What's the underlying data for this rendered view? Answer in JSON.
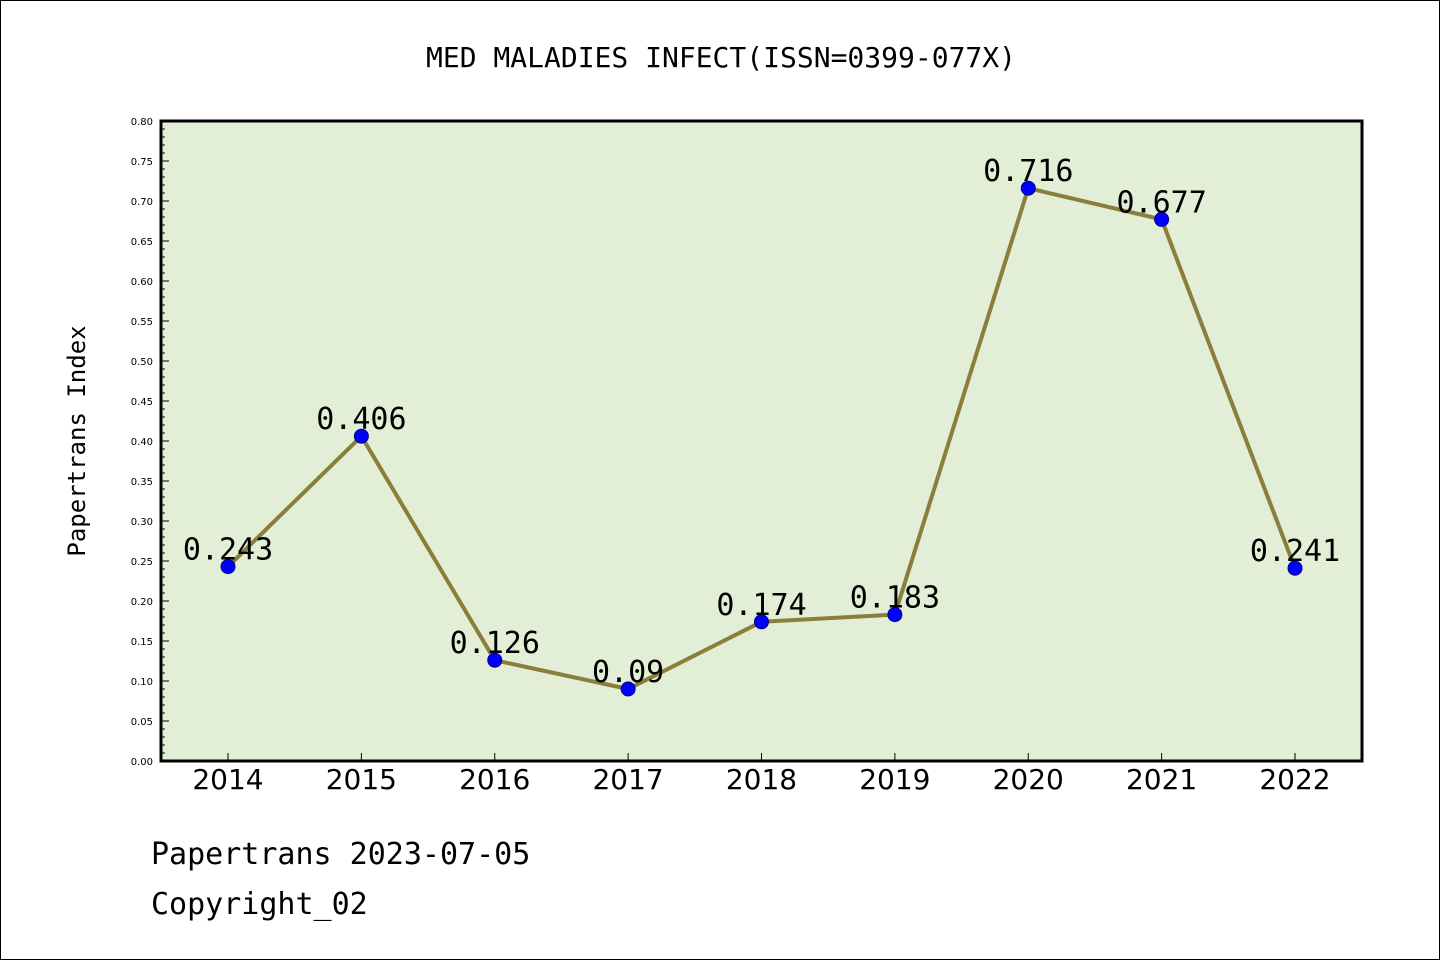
{
  "chart_data": {
    "type": "line",
    "title": "MED MALADIES INFECT(ISSN=0399-077X)",
    "xlabel": "",
    "ylabel": "Papertrans Index",
    "categories": [
      "2014",
      "2015",
      "2016",
      "2017",
      "2018",
      "2019",
      "2020",
      "2021",
      "2022"
    ],
    "series": [
      {
        "values": [
          0.243,
          0.406,
          0.126,
          0.09,
          0.174,
          0.183,
          0.716,
          0.677,
          0.241
        ],
        "labels": [
          "0.243",
          "0.406",
          "0.126",
          "0.09",
          "0.174",
          "0.183",
          "0.716",
          "0.677",
          "0.241"
        ]
      }
    ],
    "ylim": [
      0,
      0.8
    ],
    "yticks": [
      "0.00",
      "0.05",
      "0.10",
      "0.15",
      "0.20",
      "0.25",
      "0.30",
      "0.35",
      "0.40",
      "0.45",
      "0.50",
      "0.55",
      "0.60",
      "0.65",
      "0.70",
      "0.75",
      "0.80"
    ],
    "grid": false,
    "legend": "none",
    "colors": {
      "plot_bg": "#e2efd6",
      "line": "#8b7d3a",
      "marker": "#0000ff",
      "marker_edge": "#00008b"
    }
  },
  "footer": {
    "date_text": "Papertrans 2023-07-05",
    "copyright_text": "Copyright_02"
  }
}
